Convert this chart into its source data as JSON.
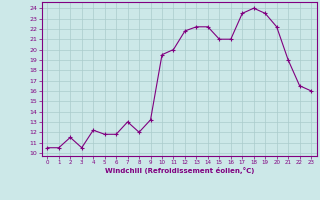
{
  "x": [
    0,
    1,
    2,
    3,
    4,
    5,
    6,
    7,
    8,
    9,
    10,
    11,
    12,
    13,
    14,
    15,
    16,
    17,
    18,
    19,
    20,
    21,
    22,
    23
  ],
  "y": [
    10.5,
    10.5,
    11.5,
    10.5,
    12.2,
    11.8,
    11.8,
    13.0,
    12.0,
    13.2,
    19.5,
    20.0,
    21.8,
    22.2,
    22.2,
    21.0,
    21.0,
    23.5,
    24.0,
    23.5,
    22.2,
    19.0,
    16.5,
    16.0
  ],
  "line_color": "#800080",
  "marker": "+",
  "marker_size": 3,
  "bg_color": "#cce8e8",
  "grid_color": "#aacccc",
  "xlabel": "Windchill (Refroidissement éolien,°C)",
  "ylabel_ticks": [
    10,
    11,
    12,
    13,
    14,
    15,
    16,
    17,
    18,
    19,
    20,
    21,
    22,
    23,
    24
  ],
  "xtick_labels": [
    "0",
    "1",
    "2",
    "3",
    "4",
    "5",
    "6",
    "7",
    "8",
    "9",
    "10",
    "11",
    "12",
    "13",
    "14",
    "15",
    "16",
    "17",
    "18",
    "19",
    "20",
    "21",
    "22",
    "23"
  ],
  "xlim": [
    -0.5,
    23.5
  ],
  "ylim": [
    9.7,
    24.6
  ]
}
